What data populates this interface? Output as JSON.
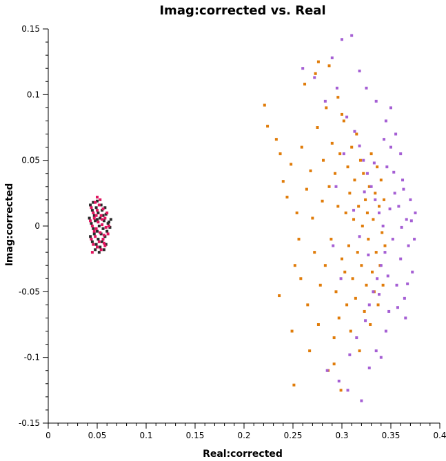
{
  "chart_data": {
    "type": "scatter",
    "title": "Imag:corrected vs. Real",
    "xlabel": "Real:corrected",
    "ylabel": "Imag:corrected",
    "xlim": [
      0,
      0.4
    ],
    "ylim": [
      -0.15,
      0.15
    ],
    "x_ticks": [
      "0",
      "0.05",
      "0.1",
      "0.15",
      "0.2",
      "0.25",
      "0.3",
      "0.35",
      "0.4"
    ],
    "y_ticks": [
      "-0.15",
      "-0.1",
      "-0.05",
      "0",
      "0.05",
      "0.1",
      "0.15"
    ],
    "grid": false,
    "legend": "none",
    "series": [
      {
        "color": "#2b2b2b",
        "points": [
          [
            0.043,
            0.016
          ],
          [
            0.045,
            0.012
          ],
          [
            0.047,
            0.008
          ],
          [
            0.049,
            0.014
          ],
          [
            0.051,
            0.01
          ],
          [
            0.053,
            0.006
          ],
          [
            0.055,
            0.012
          ],
          [
            0.057,
            0.004
          ],
          [
            0.059,
            0.009
          ],
          [
            0.061,
            0.002
          ],
          [
            0.044,
            0.002
          ],
          [
            0.046,
            -0.002
          ],
          [
            0.048,
            0.004
          ],
          [
            0.05,
            -0.004
          ],
          [
            0.052,
            0.0
          ],
          [
            0.054,
            -0.006
          ],
          [
            0.056,
            -0.002
          ],
          [
            0.058,
            -0.008
          ],
          [
            0.06,
            -0.004
          ],
          [
            0.062,
            0.003
          ],
          [
            0.043,
            -0.008
          ],
          [
            0.045,
            -0.012
          ],
          [
            0.047,
            -0.006
          ],
          [
            0.049,
            -0.014
          ],
          [
            0.051,
            -0.01
          ],
          [
            0.053,
            -0.016
          ],
          [
            0.055,
            -0.012
          ],
          [
            0.057,
            -0.018
          ],
          [
            0.059,
            -0.014
          ],
          [
            0.052,
            -0.02
          ],
          [
            0.046,
            0.018
          ],
          [
            0.05,
            0.019
          ],
          [
            0.054,
            0.016
          ],
          [
            0.058,
            0.014
          ],
          [
            0.063,
            -0.001
          ],
          [
            0.042,
            0.006
          ],
          [
            0.064,
            0.005
          ],
          [
            0.048,
            -0.018
          ],
          [
            0.056,
            0.008
          ],
          [
            0.05,
            0.005
          ]
        ]
      },
      {
        "color": "#e0155f",
        "points": [
          [
            0.044,
            0.014
          ],
          [
            0.046,
            0.01
          ],
          [
            0.048,
            0.018
          ],
          [
            0.05,
            0.012
          ],
          [
            0.052,
            0.016
          ],
          [
            0.054,
            0.008
          ],
          [
            0.056,
            0.013
          ],
          [
            0.058,
            0.006
          ],
          [
            0.06,
            0.01
          ],
          [
            0.043,
            0.004
          ],
          [
            0.045,
            0.0
          ],
          [
            0.047,
            0.006
          ],
          [
            0.049,
            -0.002
          ],
          [
            0.051,
            0.003
          ],
          [
            0.053,
            -0.005
          ],
          [
            0.055,
            0.001
          ],
          [
            0.057,
            -0.007
          ],
          [
            0.059,
            -0.001
          ],
          [
            0.061,
            -0.006
          ],
          [
            0.044,
            -0.01
          ],
          [
            0.046,
            -0.014
          ],
          [
            0.048,
            -0.008
          ],
          [
            0.05,
            -0.016
          ],
          [
            0.052,
            -0.012
          ],
          [
            0.054,
            -0.018
          ],
          [
            0.056,
            -0.01
          ],
          [
            0.058,
            -0.015
          ],
          [
            0.045,
            -0.02
          ],
          [
            0.05,
            0.022
          ],
          [
            0.053,
            0.02
          ],
          [
            0.047,
            -0.004
          ],
          [
            0.055,
            0.005
          ],
          [
            0.062,
            0.0
          ],
          [
            0.049,
            0.008
          ],
          [
            0.057,
            -0.013
          ]
        ]
      },
      {
        "color": "#e07c0a",
        "points": [
          [
            0.221,
            0.092
          ],
          [
            0.224,
            0.076
          ],
          [
            0.233,
            0.066
          ],
          [
            0.237,
            0.055
          ],
          [
            0.236,
            -0.053
          ],
          [
            0.24,
            0.034
          ],
          [
            0.244,
            0.022
          ],
          [
            0.248,
            0.047
          ],
          [
            0.249,
            -0.08
          ],
          [
            0.251,
            -0.121
          ],
          [
            0.252,
            -0.03
          ],
          [
            0.254,
            0.01
          ],
          [
            0.256,
            -0.01
          ],
          [
            0.258,
            -0.04
          ],
          [
            0.259,
            0.06
          ],
          [
            0.262,
            0.108
          ],
          [
            0.264,
            0.028
          ],
          [
            0.265,
            -0.06
          ],
          [
            0.267,
            -0.095
          ],
          [
            0.268,
            0.042
          ],
          [
            0.27,
            0.006
          ],
          [
            0.272,
            -0.02
          ],
          [
            0.273,
            0.116
          ],
          [
            0.275,
            0.075
          ],
          [
            0.276,
            -0.075
          ],
          [
            0.278,
            -0.045
          ],
          [
            0.28,
            0.019
          ],
          [
            0.281,
            0.05
          ],
          [
            0.283,
            -0.03
          ],
          [
            0.284,
            0.09
          ],
          [
            0.286,
            -0.11
          ],
          [
            0.287,
            0.03
          ],
          [
            0.289,
            -0.01
          ],
          [
            0.29,
            0.063
          ],
          [
            0.292,
            -0.085
          ],
          [
            0.293,
            0.04
          ],
          [
            0.294,
            -0.05
          ],
          [
            0.296,
            0.015
          ],
          [
            0.297,
            -0.07
          ],
          [
            0.298,
            0.055
          ],
          [
            0.299,
            -0.125
          ],
          [
            0.3,
            -0.025
          ],
          [
            0.302,
            0.08
          ],
          [
            0.303,
            -0.035
          ],
          [
            0.304,
            0.01
          ],
          [
            0.305,
            -0.06
          ],
          [
            0.306,
            0.045
          ],
          [
            0.307,
            -0.015
          ],
          [
            0.308,
            0.025
          ],
          [
            0.309,
            -0.08
          ],
          [
            0.31,
            0.06
          ],
          [
            0.311,
            -0.04
          ],
          [
            0.312,
            0.005
          ],
          [
            0.313,
            0.035
          ],
          [
            0.314,
            -0.055
          ],
          [
            0.315,
            0.07
          ],
          [
            0.316,
            -0.02
          ],
          [
            0.317,
            0.015
          ],
          [
            0.318,
            -0.095
          ],
          [
            0.319,
            0.05
          ],
          [
            0.32,
            -0.03
          ],
          [
            0.321,
            0.0
          ],
          [
            0.322,
            0.04
          ],
          [
            0.323,
            -0.065
          ],
          [
            0.324,
            0.02
          ],
          [
            0.325,
            -0.045
          ],
          [
            0.326,
            0.01
          ],
          [
            0.327,
            -0.01
          ],
          [
            0.328,
            0.03
          ],
          [
            0.329,
            -0.075
          ],
          [
            0.33,
            0.055
          ],
          [
            0.331,
            -0.035
          ],
          [
            0.332,
            0.005
          ],
          [
            0.333,
            -0.05
          ],
          [
            0.334,
            0.025
          ],
          [
            0.335,
            -0.02
          ],
          [
            0.336,
            0.045
          ],
          [
            0.337,
            -0.06
          ],
          [
            0.338,
            0.015
          ],
          [
            0.339,
            -0.03
          ],
          [
            0.34,
            0.035
          ],
          [
            0.341,
            -0.005
          ],
          [
            0.342,
            -0.045
          ],
          [
            0.343,
            0.02
          ],
          [
            0.344,
            -0.015
          ],
          [
            0.276,
            0.125
          ],
          [
            0.287,
            0.122
          ],
          [
            0.296,
            0.098
          ],
          [
            0.292,
            -0.105
          ],
          [
            0.3,
            0.085
          ]
        ]
      },
      {
        "color": "#a55fd4",
        "points": [
          [
            0.26,
            0.12
          ],
          [
            0.272,
            0.113
          ],
          [
            0.283,
            0.095
          ],
          [
            0.285,
            -0.11
          ],
          [
            0.29,
            0.128
          ],
          [
            0.295,
            0.105
          ],
          [
            0.297,
            -0.118
          ],
          [
            0.3,
            0.142
          ],
          [
            0.305,
            0.083
          ],
          [
            0.308,
            -0.098
          ],
          [
            0.31,
            0.145
          ],
          [
            0.313,
            0.072
          ],
          [
            0.315,
            -0.085
          ],
          [
            0.318,
            0.061
          ],
          [
            0.32,
            -0.133
          ],
          [
            0.322,
            0.05
          ],
          [
            0.324,
            -0.072
          ],
          [
            0.326,
            0.04
          ],
          [
            0.328,
            -0.06
          ],
          [
            0.33,
            0.03
          ],
          [
            0.332,
            -0.05
          ],
          [
            0.334,
            0.02
          ],
          [
            0.336,
            -0.04
          ],
          [
            0.338,
            0.01
          ],
          [
            0.34,
            -0.03
          ],
          [
            0.342,
            0.0
          ],
          [
            0.344,
            -0.02
          ],
          [
            0.346,
            0.045
          ],
          [
            0.348,
            -0.065
          ],
          [
            0.35,
            0.06
          ],
          [
            0.352,
            -0.01
          ],
          [
            0.354,
            0.025
          ],
          [
            0.356,
            -0.045
          ],
          [
            0.358,
            0.015
          ],
          [
            0.36,
            -0.025
          ],
          [
            0.362,
            0.035
          ],
          [
            0.364,
            -0.055
          ],
          [
            0.366,
            0.005
          ],
          [
            0.368,
            -0.015
          ],
          [
            0.37,
            0.02
          ],
          [
            0.372,
            -0.035
          ],
          [
            0.374,
            -0.01
          ],
          [
            0.375,
            0.01
          ],
          [
            0.355,
            0.07
          ],
          [
            0.345,
            0.08
          ],
          [
            0.335,
            0.095
          ],
          [
            0.325,
            0.105
          ],
          [
            0.345,
            -0.08
          ],
          [
            0.335,
            -0.095
          ],
          [
            0.328,
            -0.108
          ],
          [
            0.36,
            0.055
          ],
          [
            0.365,
            -0.07
          ],
          [
            0.35,
            0.09
          ],
          [
            0.34,
            -0.1
          ],
          [
            0.318,
            0.118
          ],
          [
            0.306,
            -0.125
          ],
          [
            0.302,
            0.055
          ],
          [
            0.299,
            -0.04
          ],
          [
            0.294,
            0.03
          ],
          [
            0.291,
            -0.015
          ],
          [
            0.312,
            0.012
          ],
          [
            0.318,
            -0.008
          ],
          [
            0.323,
            0.026
          ],
          [
            0.327,
            -0.022
          ],
          [
            0.333,
            0.048
          ],
          [
            0.338,
            -0.052
          ],
          [
            0.343,
            0.066
          ],
          [
            0.347,
            -0.038
          ],
          [
            0.353,
            0.041
          ],
          [
            0.357,
            -0.062
          ],
          [
            0.363,
            0.028
          ],
          [
            0.367,
            -0.044
          ],
          [
            0.371,
            0.004
          ],
          [
            0.361,
            -0.001
          ],
          [
            0.349,
            0.013
          ]
        ]
      }
    ]
  }
}
